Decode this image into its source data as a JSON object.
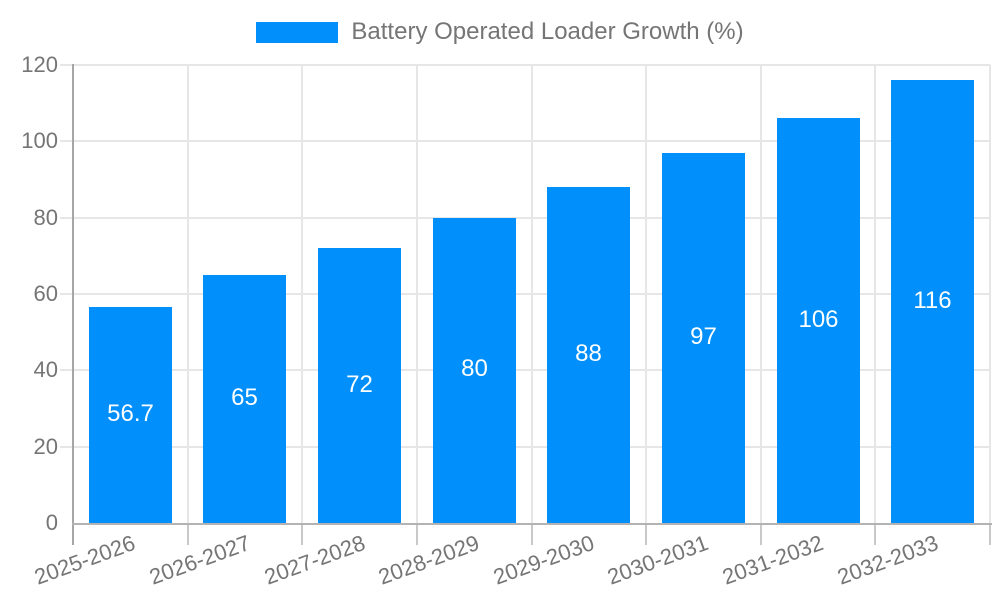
{
  "legend": {
    "label": "Battery Operated Loader Growth (%)"
  },
  "colors": {
    "bar": "#008FFB",
    "axis_text": "#757575",
    "grid": "#e6e6e6",
    "y_axis_line": "#a6a6a6",
    "x_axis_line": "#b3b3b3",
    "boundary_tick": "#c9c9c9",
    "value_label": "#ffffff",
    "background": "#ffffff"
  },
  "chart_data": {
    "type": "bar",
    "title": "",
    "xlabel": "",
    "ylabel": "",
    "categories": [
      "2025-2026",
      "2026-2027",
      "2027-2028",
      "2028-2029",
      "2029-2030",
      "2030-2031",
      "2031-2032",
      "2032-2033"
    ],
    "series": [
      {
        "name": "Battery Operated Loader Growth (%)",
        "values": [
          56.7,
          65,
          72,
          80,
          88,
          97,
          106,
          116
        ]
      }
    ],
    "value_labels": [
      "56.7",
      "65",
      "72",
      "80",
      "88",
      "97",
      "106",
      "116"
    ],
    "ylim": [
      0,
      120
    ],
    "yticks": [
      0,
      20,
      40,
      60,
      80,
      100,
      120
    ],
    "grid": "horizontal-and-vertical",
    "legend_position": "top-center",
    "bar_label_position": "middle-center",
    "x_label_rotation_deg": -20
  }
}
